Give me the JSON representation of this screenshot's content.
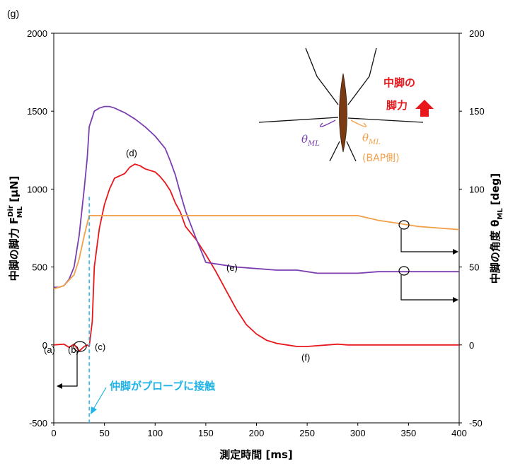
{
  "panel_label": "(g)",
  "colors": {
    "force": "#e8171c",
    "angle_bap": "#f2a14a",
    "angle_other": "#7b3fb0",
    "contact_line": "#1fb4e8",
    "arrow": "#e8171c",
    "body": "#7a3a14"
  },
  "labels": {
    "xlabel": "測定時間 [ms]",
    "ylabel_left": "中脚の脚力 F",
    "ylabel_left_sup": "Dir",
    "ylabel_left_sub": "ML",
    "ylabel_left_unit": "[μN]",
    "ylabel_right": "中脚の角度 θ",
    "ylabel_right_sub": "ML",
    "ylabel_right_unit": "[deg]",
    "inset_force_line1": "中脚の",
    "inset_force_line2": "脚力",
    "inset_theta": "θ",
    "inset_theta_sub": "ML",
    "inset_theta_bap": "θ",
    "inset_theta_bap_sub": "ML",
    "inset_bap": "(BAP側)",
    "contact": "仲脚がプローブに接触",
    "pt_a": "(a)",
    "pt_b": "(b)",
    "pt_c": "(c)",
    "pt_d": "(d)",
    "pt_e": "(e)",
    "pt_f": "(f)"
  },
  "chart_data": {
    "type": "line",
    "xlabel": "測定時間 [ms]",
    "ylabel": "中脚の脚力 F_ML^Dir [μN]",
    "y2label": "中脚の角度 θ_ML [deg]",
    "xlim": [
      0,
      400
    ],
    "ylim": [
      -500,
      2000
    ],
    "y2lim": [
      -50,
      200
    ],
    "xticks": [
      0,
      50,
      100,
      150,
      200,
      250,
      300,
      350,
      400
    ],
    "yticks": [
      -500,
      0,
      500,
      1000,
      1500,
      2000
    ],
    "y2ticks": [
      -50,
      0,
      50,
      100,
      150,
      200
    ],
    "contact_time_ms": 35,
    "series": [
      {
        "axis": "left",
        "color": "#e8171c",
        "x": [
          0,
          10,
          15,
          20,
          25,
          30,
          33,
          35,
          38,
          40,
          45,
          50,
          55,
          60,
          70,
          75,
          80,
          85,
          90,
          95,
          100,
          105,
          110,
          115,
          120,
          125,
          130,
          140,
          150,
          160,
          170,
          180,
          190,
          200,
          210,
          220,
          230,
          240,
          250,
          260,
          270,
          280,
          290,
          300,
          320,
          340,
          360,
          380,
          400
        ],
        "values": [
          0,
          5,
          -15,
          5,
          -40,
          -10,
          0,
          -10,
          150,
          500,
          750,
          900,
          1000,
          1070,
          1100,
          1140,
          1160,
          1150,
          1130,
          1120,
          1110,
          1080,
          1040,
          990,
          910,
          850,
          760,
          680,
          580,
          470,
          350,
          230,
          130,
          70,
          30,
          10,
          0,
          -10,
          -10,
          -5,
          0,
          5,
          0,
          0,
          0,
          0,
          0,
          0,
          0
        ]
      },
      {
        "axis": "right",
        "color": "#7b3fb0",
        "x": [
          0,
          5,
          10,
          15,
          20,
          25,
          30,
          33,
          35,
          40,
          45,
          50,
          55,
          60,
          70,
          80,
          90,
          100,
          110,
          115,
          120,
          125,
          130,
          140,
          150,
          160,
          180,
          200,
          220,
          240,
          250,
          260,
          280,
          300,
          320,
          340,
          350,
          360,
          380,
          400
        ],
        "values": [
          37,
          37,
          38,
          42,
          50,
          70,
          100,
          120,
          140,
          150,
          152,
          153,
          153,
          152,
          149,
          145,
          140,
          134,
          126,
          118,
          109,
          97,
          86,
          69,
          53,
          52,
          50,
          49,
          48,
          48,
          47,
          46,
          46,
          46,
          47,
          47,
          47,
          47,
          47,
          47
        ]
      },
      {
        "axis": "right",
        "color": "#f2a14a",
        "x": [
          0,
          10,
          20,
          25,
          30,
          33,
          35,
          40,
          100,
          150,
          200,
          250,
          260,
          280,
          300,
          320,
          340,
          350,
          360,
          380,
          400
        ],
        "values": [
          36,
          38,
          45,
          55,
          70,
          78,
          83,
          83,
          83,
          83,
          83,
          83,
          83,
          83,
          83,
          80,
          78,
          77,
          76,
          75,
          74
        ]
      }
    ]
  }
}
